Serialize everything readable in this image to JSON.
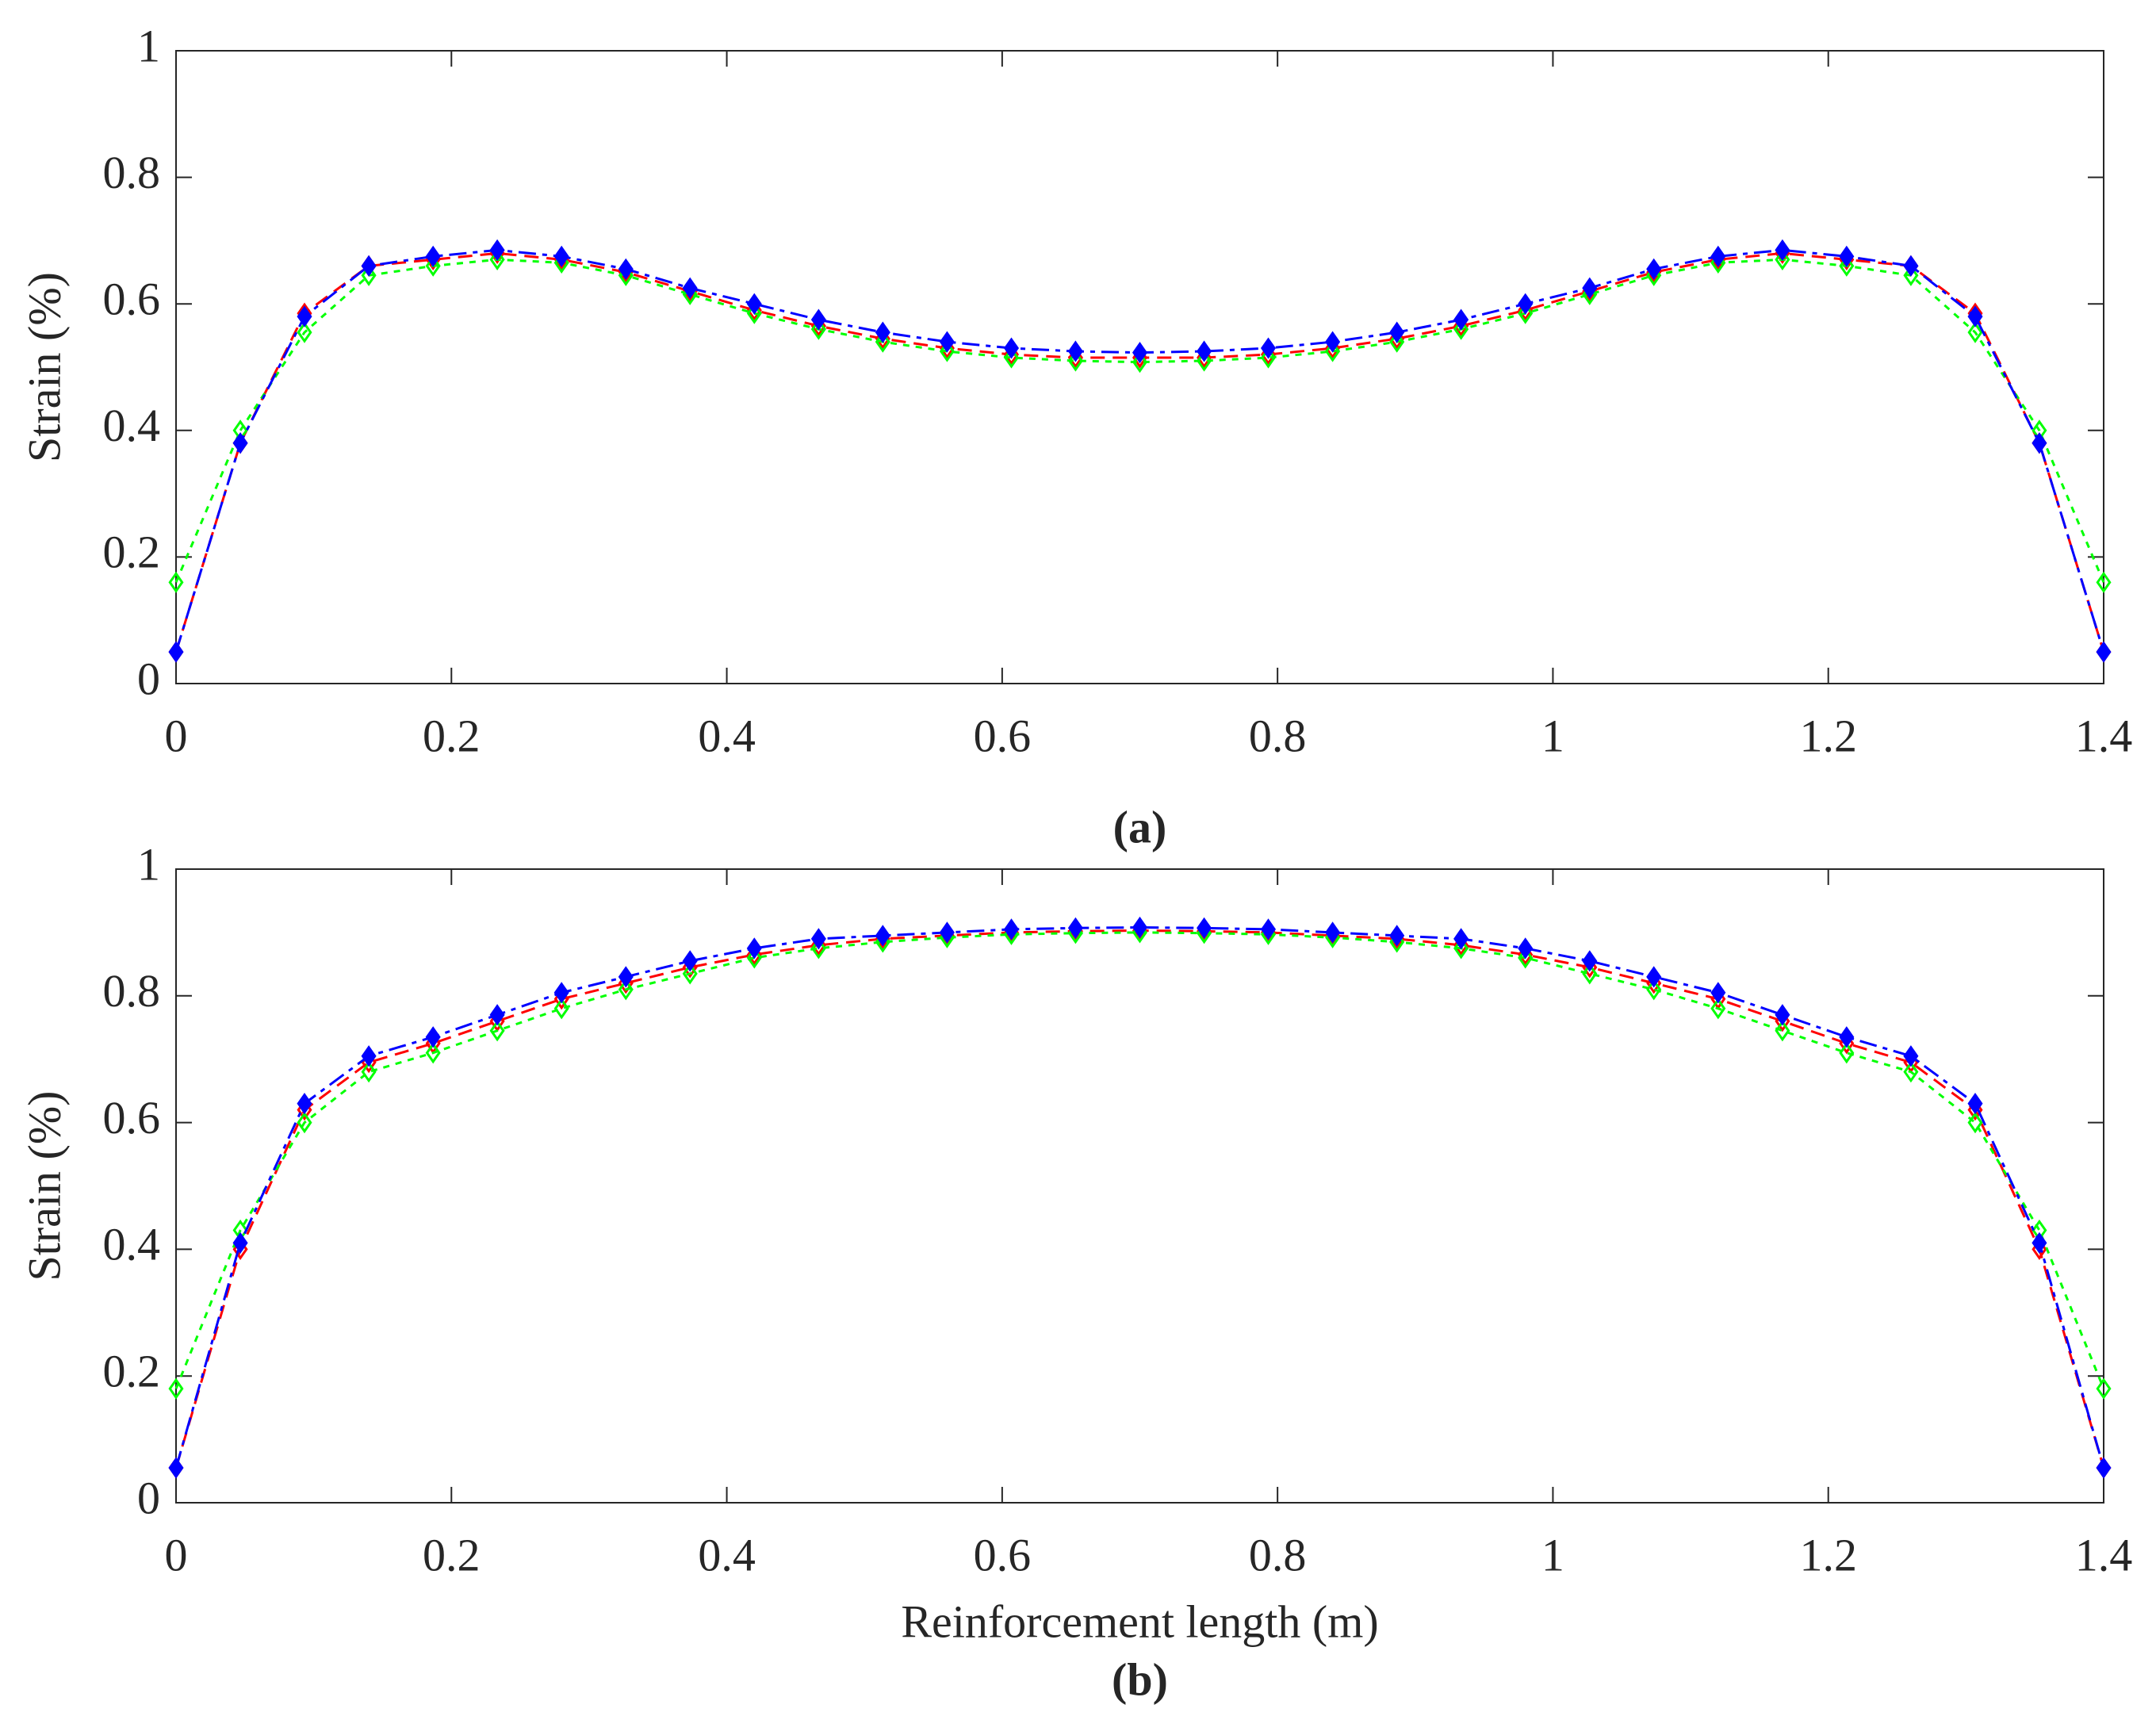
{
  "chart_data": [
    {
      "type": "line",
      "title": "(a)",
      "y_label": "Strain (%)",
      "x": [
        0,
        0.0467,
        0.0933,
        0.14,
        0.1867,
        0.2333,
        0.28,
        0.3267,
        0.3733,
        0.42,
        0.4667,
        0.5133,
        0.56,
        0.6067,
        0.6533,
        0.7,
        0.7467,
        0.7933,
        0.84,
        0.8867,
        0.9333,
        0.98,
        1.0267,
        1.0733,
        1.12,
        1.1667,
        1.2133,
        1.26,
        1.3067,
        1.3533,
        1.4
      ],
      "series": [
        {
          "color": "#ff0000",
          "values": [
            0.05,
            0.38,
            0.585,
            0.66,
            0.67,
            0.68,
            0.67,
            0.65,
            0.62,
            0.59,
            0.565,
            0.545,
            0.53,
            0.52,
            0.515,
            0.515,
            0.515,
            0.52,
            0.53,
            0.545,
            0.565,
            0.59,
            0.62,
            0.65,
            0.67,
            0.68,
            0.67,
            0.66,
            0.585,
            0.38,
            0.05
          ]
        },
        {
          "color": "#00ff00",
          "values": [
            0.16,
            0.4,
            0.555,
            0.645,
            0.66,
            0.67,
            0.665,
            0.645,
            0.615,
            0.585,
            0.56,
            0.54,
            0.525,
            0.515,
            0.51,
            0.508,
            0.51,
            0.515,
            0.525,
            0.54,
            0.56,
            0.585,
            0.615,
            0.645,
            0.665,
            0.67,
            0.66,
            0.645,
            0.555,
            0.4,
            0.16
          ]
        },
        {
          "color": "#0000ff",
          "values": [
            0.05,
            0.38,
            0.58,
            0.66,
            0.675,
            0.685,
            0.675,
            0.655,
            0.625,
            0.6,
            0.575,
            0.555,
            0.54,
            0.53,
            0.525,
            0.523,
            0.525,
            0.53,
            0.54,
            0.555,
            0.575,
            0.6,
            0.625,
            0.655,
            0.675,
            0.685,
            0.675,
            0.66,
            0.58,
            0.38,
            0.05
          ]
        }
      ],
      "xlim": [
        0,
        1.4
      ],
      "xticks": [
        0,
        0.2,
        0.4,
        0.6,
        0.8,
        1,
        1.2,
        1.4
      ],
      "ylim": [
        0,
        1
      ],
      "yticks": [
        0,
        0.2,
        0.4,
        0.6,
        0.8,
        1
      ]
    },
    {
      "type": "line",
      "title": "(b)",
      "y_label": "Strain (%)",
      "x_label": "Reinforcement length (m)",
      "x": [
        0,
        0.0467,
        0.0933,
        0.14,
        0.1867,
        0.2333,
        0.28,
        0.3267,
        0.3733,
        0.42,
        0.4667,
        0.5133,
        0.56,
        0.6067,
        0.6533,
        0.7,
        0.7467,
        0.7933,
        0.84,
        0.8867,
        0.9333,
        0.98,
        1.0267,
        1.0733,
        1.12,
        1.1667,
        1.2133,
        1.26,
        1.3067,
        1.3533,
        1.4
      ],
      "series": [
        {
          "color": "#ff0000",
          "values": [
            0.055,
            0.4,
            0.62,
            0.695,
            0.725,
            0.76,
            0.795,
            0.82,
            0.845,
            0.865,
            0.88,
            0.89,
            0.895,
            0.9,
            0.902,
            0.903,
            0.902,
            0.9,
            0.895,
            0.89,
            0.88,
            0.865,
            0.845,
            0.82,
            0.795,
            0.76,
            0.725,
            0.695,
            0.62,
            0.4,
            0.055
          ]
        },
        {
          "color": "#00ff00",
          "values": [
            0.18,
            0.43,
            0.6,
            0.68,
            0.71,
            0.745,
            0.78,
            0.81,
            0.835,
            0.86,
            0.875,
            0.885,
            0.892,
            0.897,
            0.899,
            0.9,
            0.899,
            0.897,
            0.892,
            0.885,
            0.875,
            0.86,
            0.835,
            0.81,
            0.78,
            0.745,
            0.71,
            0.68,
            0.6,
            0.43,
            0.18
          ]
        },
        {
          "color": "#0000ff",
          "values": [
            0.055,
            0.41,
            0.63,
            0.705,
            0.735,
            0.77,
            0.805,
            0.83,
            0.855,
            0.875,
            0.89,
            0.895,
            0.9,
            0.905,
            0.907,
            0.908,
            0.907,
            0.905,
            0.9,
            0.895,
            0.89,
            0.875,
            0.855,
            0.83,
            0.805,
            0.77,
            0.735,
            0.705,
            0.63,
            0.41,
            0.055
          ]
        }
      ],
      "xlim": [
        0,
        1.4
      ],
      "xticks": [
        0,
        0.2,
        0.4,
        0.6,
        0.8,
        1,
        1.2,
        1.4
      ],
      "ylim": [
        0,
        1
      ],
      "yticks": [
        0,
        0.2,
        0.4,
        0.6,
        0.8,
        1
      ]
    }
  ]
}
